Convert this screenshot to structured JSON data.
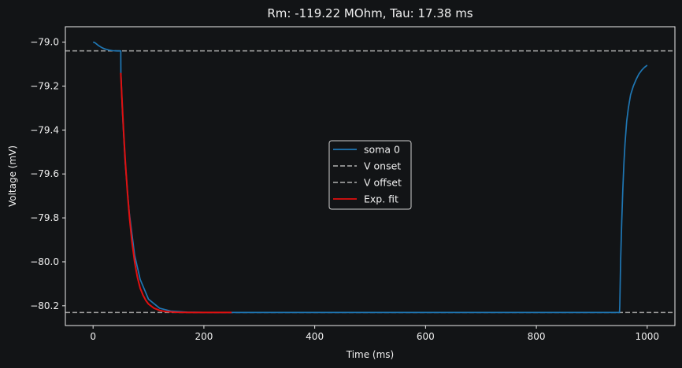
{
  "chart_data": {
    "type": "line",
    "title": "Rm: -119.22 MOhm, Tau: 17.38 ms",
    "xlabel": "Time (ms)",
    "ylabel": "Voltage (mV)",
    "xlim": [
      -50,
      1050
    ],
    "ylim": [
      -80.29,
      -78.93
    ],
    "xticks": [
      0,
      200,
      400,
      600,
      800,
      1000
    ],
    "xtick_labels": [
      "0",
      "200",
      "400",
      "600",
      "800",
      "1000"
    ],
    "yticks": [
      -79.0,
      -79.2,
      -79.4,
      -79.6,
      -79.8,
      -80.0,
      -80.2
    ],
    "ytick_labels": [
      "−79.0",
      "−79.2",
      "−79.4",
      "−79.6",
      "−79.8",
      "−80.0",
      "−80.2"
    ],
    "grid": false,
    "legend_position": "center",
    "series": [
      {
        "name": "soma 0",
        "kind": "line",
        "color": "#1f77b4",
        "x": [
          0,
          3,
          6,
          10,
          15,
          20,
          28,
          35,
          43,
          50,
          50.2,
          53,
          58,
          65,
          75,
          85,
          100,
          120,
          140,
          170,
          200,
          250,
          400,
          600,
          800,
          950,
          950.5,
          952,
          954,
          956,
          958,
          960,
          963,
          966,
          970,
          975,
          980,
          985,
          990,
          995,
          1000
        ],
        "y": [
          -79.0,
          -79.002,
          -79.008,
          -79.016,
          -79.024,
          -79.03,
          -79.036,
          -79.039,
          -79.04,
          -79.04,
          -79.14,
          -79.32,
          -79.55,
          -79.77,
          -79.97,
          -80.08,
          -80.17,
          -80.211,
          -80.224,
          -80.229,
          -80.2303,
          -80.2305,
          -80.2305,
          -80.2305,
          -80.2305,
          -80.2305,
          -80.2,
          -80.0,
          -79.82,
          -79.67,
          -79.55,
          -79.46,
          -79.36,
          -79.3,
          -79.24,
          -79.2,
          -79.17,
          -79.145,
          -79.128,
          -79.115,
          -79.105
        ]
      },
      {
        "name": "V onset",
        "kind": "hline",
        "color": "#9a9a9a",
        "dash": true,
        "y": -79.04
      },
      {
        "name": "V offset",
        "kind": "hline",
        "color": "#9a9a9a",
        "dash": true,
        "y": -80.2305
      },
      {
        "name": "Exp. fit",
        "kind": "line",
        "color": "#e01010",
        "x": [
          50,
          52,
          55,
          58,
          62,
          66,
          70,
          75,
          80,
          85,
          90,
          95,
          100,
          110,
          120,
          130,
          140,
          150,
          160,
          180,
          200,
          225,
          250
        ],
        "y": [
          -79.14,
          -79.253,
          -79.403,
          -79.535,
          -79.684,
          -79.806,
          -79.905,
          -80.0,
          -80.07,
          -80.12,
          -80.151,
          -80.175,
          -80.192,
          -80.211,
          -80.221,
          -80.226,
          -80.228,
          -80.2295,
          -80.23,
          -80.2303,
          -80.2304,
          -80.2305,
          -80.2305
        ]
      }
    ]
  }
}
